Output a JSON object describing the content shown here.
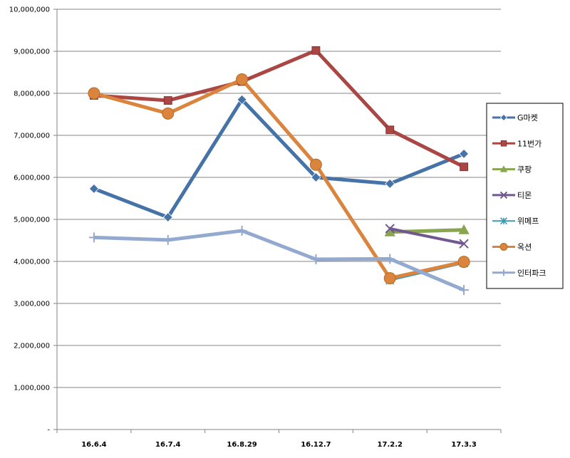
{
  "chart_data": {
    "type": "line",
    "categories": [
      "16.6.4",
      "16.7.4",
      "16.8.29",
      "16.12.7",
      "17.2.2",
      "17.3.3"
    ],
    "ylim": [
      0,
      10000000
    ],
    "yticks": [
      0,
      1000000,
      2000000,
      3000000,
      4000000,
      5000000,
      6000000,
      7000000,
      8000000,
      9000000,
      10000000
    ],
    "ytick_labels": [
      "-",
      "1,000,000",
      "2,000,000",
      "3,000,000",
      "4,000,000",
      "5,000,000",
      "6,000,000",
      "7,000,000",
      "8,000,000",
      "9,000,000",
      "10,000,000"
    ],
    "grid": true,
    "legend_position": "right",
    "series": [
      {
        "name": "G마켓",
        "color": "#4573A7",
        "marker": "diamond",
        "values": [
          5730000,
          5050000,
          7850000,
          6000000,
          5850000,
          6560000
        ]
      },
      {
        "name": "11번가",
        "color": "#AA4643",
        "marker": "square",
        "values": [
          7950000,
          7830000,
          8280000,
          9020000,
          7130000,
          6250000
        ]
      },
      {
        "name": "쿠팡",
        "color": "#89A54E",
        "marker": "triangle",
        "values": [
          null,
          null,
          null,
          null,
          4700000,
          4750000
        ]
      },
      {
        "name": "티몬",
        "color": "#71588F",
        "marker": "x",
        "values": [
          null,
          null,
          null,
          null,
          4780000,
          4420000
        ]
      },
      {
        "name": "위메프",
        "color": "#4198AF",
        "marker": "star",
        "values": [
          null,
          null,
          null,
          null,
          3550000,
          3960000
        ]
      },
      {
        "name": "옥션",
        "color": "#DB843D",
        "marker": "circle",
        "values": [
          8000000,
          7520000,
          8330000,
          6300000,
          3600000,
          3990000
        ]
      },
      {
        "name": "인터파크",
        "color": "#93A9CF",
        "marker": "plus",
        "values": [
          4570000,
          4510000,
          4730000,
          4050000,
          4060000,
          3320000
        ]
      }
    ]
  }
}
